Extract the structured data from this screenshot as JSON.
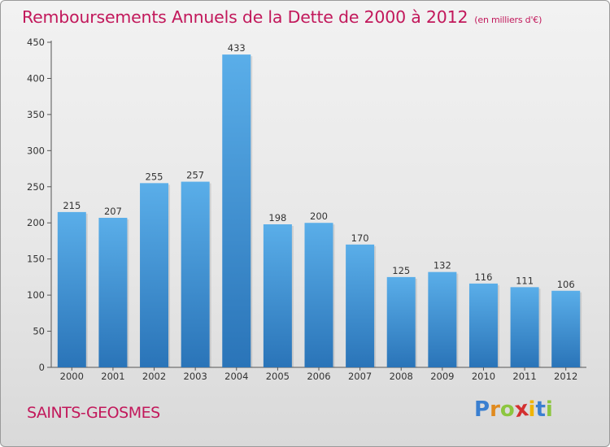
{
  "chart_data": {
    "type": "bar",
    "title": "Remboursements Annuels de la Dette de 2000 à 2012",
    "unit": "(en milliers d'€)",
    "categories": [
      "2000",
      "2001",
      "2002",
      "2003",
      "2004",
      "2005",
      "2006",
      "2007",
      "2008",
      "2009",
      "2010",
      "2011",
      "2012"
    ],
    "values": [
      215,
      207,
      255,
      257,
      433,
      198,
      200,
      170,
      125,
      132,
      116,
      111,
      106
    ],
    "ylim": [
      0,
      450
    ],
    "yticks": [
      0,
      50,
      100,
      150,
      200,
      250,
      300,
      350,
      400,
      450
    ],
    "grid": false,
    "bar_color": "#3d8fd6"
  },
  "footer": {
    "commune": "SAINTS-GEOSMES",
    "logo_letters": [
      "P",
      "r",
      "o",
      "x",
      "i",
      "t",
      "i"
    ],
    "logo_colors": [
      "#3a7fd0",
      "#e08a1e",
      "#8cc63f",
      "#d32f2f",
      "#f0b400",
      "#3a7fd0",
      "#8cc63f"
    ]
  }
}
